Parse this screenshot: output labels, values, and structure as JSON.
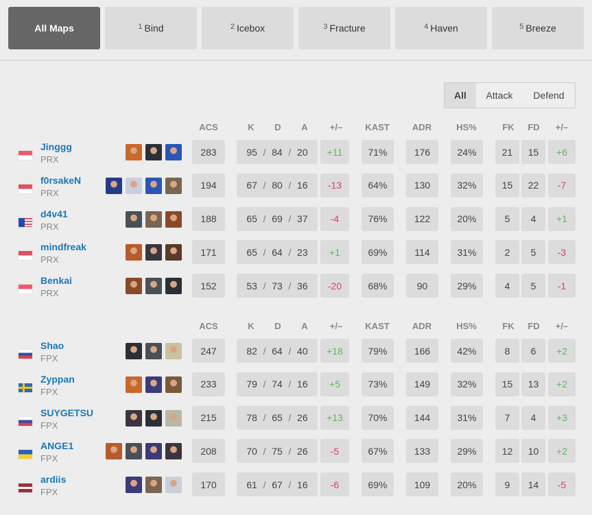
{
  "map_tabs": [
    {
      "num": "",
      "label": "All Maps",
      "active": true
    },
    {
      "num": "1",
      "label": "Bind"
    },
    {
      "num": "2",
      "label": "Icebox"
    },
    {
      "num": "3",
      "label": "Fracture"
    },
    {
      "num": "4",
      "label": "Haven"
    },
    {
      "num": "5",
      "label": "Breeze"
    }
  ],
  "side_toggle": {
    "options": [
      "All",
      "Attack",
      "Defend"
    ],
    "selected": "All"
  },
  "columns": [
    "ACS",
    "K",
    "D",
    "A",
    "+/–",
    "KAST",
    "ADR",
    "HS%",
    "FK",
    "FD",
    "+/–"
  ],
  "colors": {
    "positive": "#5cb85c",
    "negative": "#d9435e",
    "link": "#1a78b6"
  },
  "teams": [
    {
      "players": [
        {
          "name": "Jinggg",
          "team": "PRX",
          "flag": "sg",
          "agents": [
            "raze",
            "sage",
            "neon"
          ],
          "acs": "283",
          "k": "95",
          "d": "84",
          "a": "20",
          "pm": "+11",
          "kast": "71%",
          "adr": "176",
          "hs": "24%",
          "fk": "21",
          "fd": "15",
          "fkpm": "+6"
        },
        {
          "name": "f0rsakeN",
          "team": "PRX",
          "flag": "id",
          "agents": [
            "yoru",
            "jett",
            "neon",
            "chamber"
          ],
          "acs": "194",
          "k": "67",
          "d": "80",
          "a": "16",
          "pm": "-13",
          "kast": "64%",
          "adr": "130",
          "hs": "32%",
          "fk": "15",
          "fd": "22",
          "fkpm": "-7"
        },
        {
          "name": "d4v41",
          "team": "PRX",
          "flag": "my",
          "agents": [
            "viper",
            "chamber",
            "kayo-brim"
          ],
          "acs": "188",
          "k": "65",
          "d": "69",
          "a": "37",
          "pm": "-4",
          "kast": "76%",
          "adr": "122",
          "hs": "20%",
          "fk": "5",
          "fd": "4",
          "fkpm": "+1"
        },
        {
          "name": "mindfreak",
          "team": "PRX",
          "flag": "id",
          "agents": [
            "brimstone",
            "fade",
            "astra"
          ],
          "acs": "171",
          "k": "65",
          "d": "64",
          "a": "23",
          "pm": "+1",
          "kast": "69%",
          "adr": "114",
          "hs": "31%",
          "fk": "2",
          "fd": "5",
          "fkpm": "-3"
        },
        {
          "name": "Benkai",
          "team": "PRX",
          "flag": "sg",
          "agents": [
            "kayo-brim",
            "viper",
            "sage"
          ],
          "acs": "152",
          "k": "53",
          "d": "73",
          "a": "36",
          "pm": "-20",
          "kast": "68%",
          "adr": "90",
          "hs": "29%",
          "fk": "4",
          "fd": "5",
          "fkpm": "-1"
        }
      ]
    },
    {
      "players": [
        {
          "name": "Shao",
          "team": "FPX",
          "flag": "ru",
          "agents": [
            "sage",
            "viper",
            "skye"
          ],
          "acs": "247",
          "k": "82",
          "d": "64",
          "a": "40",
          "pm": "+18",
          "kast": "79%",
          "adr": "166",
          "hs": "42%",
          "fk": "8",
          "fd": "6",
          "fkpm": "+2"
        },
        {
          "name": "Zyppan",
          "team": "FPX",
          "flag": "se",
          "agents": [
            "raze",
            "omen",
            "skye-red"
          ],
          "acs": "233",
          "k": "79",
          "d": "74",
          "a": "16",
          "pm": "+5",
          "kast": "73%",
          "adr": "149",
          "hs": "32%",
          "fk": "15",
          "fd": "13",
          "fkpm": "+2"
        },
        {
          "name": "SUYGETSU",
          "team": "FPX",
          "flag": "ru",
          "agents": [
            "fade",
            "sage",
            "sova"
          ],
          "acs": "215",
          "k": "78",
          "d": "65",
          "a": "26",
          "pm": "+13",
          "kast": "70%",
          "adr": "144",
          "hs": "31%",
          "fk": "7",
          "fd": "4",
          "fkpm": "+3"
        },
        {
          "name": "ANGE1",
          "team": "FPX",
          "flag": "ua",
          "agents": [
            "brimstone",
            "viper",
            "omen",
            "fade"
          ],
          "acs": "208",
          "k": "70",
          "d": "75",
          "a": "26",
          "pm": "-5",
          "kast": "67%",
          "adr": "133",
          "hs": "29%",
          "fk": "12",
          "fd": "10",
          "fkpm": "+2"
        },
        {
          "name": "ardiis",
          "team": "FPX",
          "flag": "lv",
          "agents": [
            "omen",
            "chamber",
            "jett"
          ],
          "acs": "170",
          "k": "61",
          "d": "67",
          "a": "16",
          "pm": "-6",
          "kast": "69%",
          "adr": "109",
          "hs": "20%",
          "fk": "9",
          "fd": "14",
          "fkpm": "-5"
        }
      ]
    }
  ]
}
